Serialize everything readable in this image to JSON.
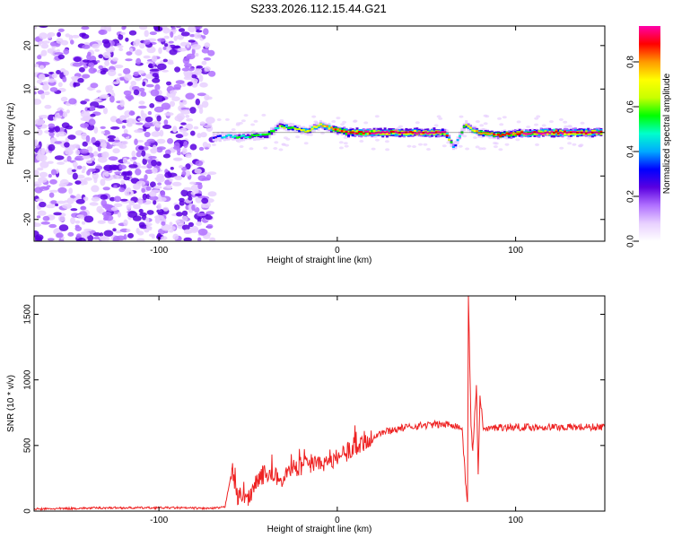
{
  "title": "S233.2026.112.15.44.G21",
  "chart_data": [
    {
      "type": "heatmap",
      "xlabel": "Height of straight line (km)",
      "ylabel": "Frequency (Hz)",
      "xlim": [
        -170,
        150
      ],
      "ylim": [
        -25,
        24.5
      ],
      "x_ticks": [
        -100,
        0,
        100
      ],
      "x_tick_labels": [
        "-100",
        "0",
        "100"
      ],
      "y_ticks": [
        -20,
        -10,
        0,
        10,
        20
      ],
      "y_tick_labels": [
        "-20",
        "-10",
        "0",
        "10",
        "20"
      ],
      "noise_region_x": [
        -170,
        -70
      ],
      "signal_line_freq": 0,
      "signal_trace": [
        {
          "x": -70,
          "f": -1.2,
          "a": 0.3
        },
        {
          "x": -62,
          "f": -0.8,
          "a": 0.45
        },
        {
          "x": -55,
          "f": -1.0,
          "a": 0.5
        },
        {
          "x": -48,
          "f": -0.8,
          "a": 0.55
        },
        {
          "x": -40,
          "f": -0.6,
          "a": 0.55
        },
        {
          "x": -33,
          "f": 1.5,
          "a": 0.55
        },
        {
          "x": -25,
          "f": 1.0,
          "a": 0.6
        },
        {
          "x": -18,
          "f": 0.3,
          "a": 0.7
        },
        {
          "x": -10,
          "f": 1.8,
          "a": 0.7
        },
        {
          "x": -3,
          "f": 0.8,
          "a": 0.8
        },
        {
          "x": 5,
          "f": 0.0,
          "a": 0.9
        },
        {
          "x": 20,
          "f": 0.0,
          "a": 0.95
        },
        {
          "x": 40,
          "f": 0.0,
          "a": 0.95
        },
        {
          "x": 60,
          "f": 0.0,
          "a": 0.95
        },
        {
          "x": 65,
          "f": -3.5,
          "a": 0.35
        },
        {
          "x": 71,
          "f": 1.8,
          "a": 0.6
        },
        {
          "x": 78,
          "f": 0.0,
          "a": 0.8
        },
        {
          "x": 90,
          "f": -0.6,
          "a": 0.85
        },
        {
          "x": 100,
          "f": -0.2,
          "a": 0.9
        },
        {
          "x": 120,
          "f": 0.0,
          "a": 0.95
        },
        {
          "x": 148,
          "f": 0.0,
          "a": 0.95
        }
      ],
      "colorbar": {
        "label": "Normalized spectral amplitude",
        "range": [
          0,
          0.96
        ],
        "ticks": [
          0,
          0.2,
          0.4,
          0.6,
          0.8
        ],
        "tick_labels": [
          "0.0",
          "0.2",
          "0.4",
          "0.6",
          "0.8"
        ],
        "colors": [
          "#ffffff",
          "#e8d0ff",
          "#b070ff",
          "#5a00e0",
          "#0000ff",
          "#00aaff",
          "#00ffcc",
          "#00ff00",
          "#c8ff00",
          "#ffff00",
          "#ff9900",
          "#ff0000",
          "#ff00aa"
        ]
      }
    },
    {
      "type": "line",
      "xlabel": "Height of straight line (km)",
      "ylabel": "SNR (10 * v/v)",
      "xlim": [
        -170,
        150
      ],
      "ylim": [
        0,
        1640
      ],
      "x_ticks": [
        -100,
        0,
        100
      ],
      "x_tick_labels": [
        "-100",
        "0",
        "100"
      ],
      "y_ticks": [
        0,
        500,
        1000,
        1500
      ],
      "y_tick_labels": [
        "0",
        "500",
        "1000",
        "1500"
      ],
      "color": "#ee2222",
      "series_points": [
        {
          "x": -170,
          "y": 15
        },
        {
          "x": -130,
          "y": 25
        },
        {
          "x": -90,
          "y": 25
        },
        {
          "x": -70,
          "y": 20
        },
        {
          "x": -63,
          "y": 30
        },
        {
          "x": -59,
          "y": 320
        },
        {
          "x": -56,
          "y": 120
        },
        {
          "x": -50,
          "y": 90
        },
        {
          "x": -45,
          "y": 250
        },
        {
          "x": -38,
          "y": 300
        },
        {
          "x": -32,
          "y": 230
        },
        {
          "x": -25,
          "y": 330
        },
        {
          "x": -15,
          "y": 340
        },
        {
          "x": -5,
          "y": 380
        },
        {
          "x": 5,
          "y": 440
        },
        {
          "x": 15,
          "y": 530
        },
        {
          "x": 25,
          "y": 600
        },
        {
          "x": 35,
          "y": 630
        },
        {
          "x": 45,
          "y": 650
        },
        {
          "x": 55,
          "y": 660
        },
        {
          "x": 65,
          "y": 660
        },
        {
          "x": 70,
          "y": 630
        },
        {
          "x": 72,
          "y": 200
        },
        {
          "x": 73,
          "y": 70
        },
        {
          "x": 73.5,
          "y": 1640
        },
        {
          "x": 75,
          "y": 650
        },
        {
          "x": 76,
          "y": 460
        },
        {
          "x": 78,
          "y": 960
        },
        {
          "x": 79,
          "y": 280
        },
        {
          "x": 80,
          "y": 880
        },
        {
          "x": 82,
          "y": 620
        },
        {
          "x": 90,
          "y": 640
        },
        {
          "x": 110,
          "y": 640
        },
        {
          "x": 130,
          "y": 640
        },
        {
          "x": 150,
          "y": 640
        }
      ]
    }
  ]
}
